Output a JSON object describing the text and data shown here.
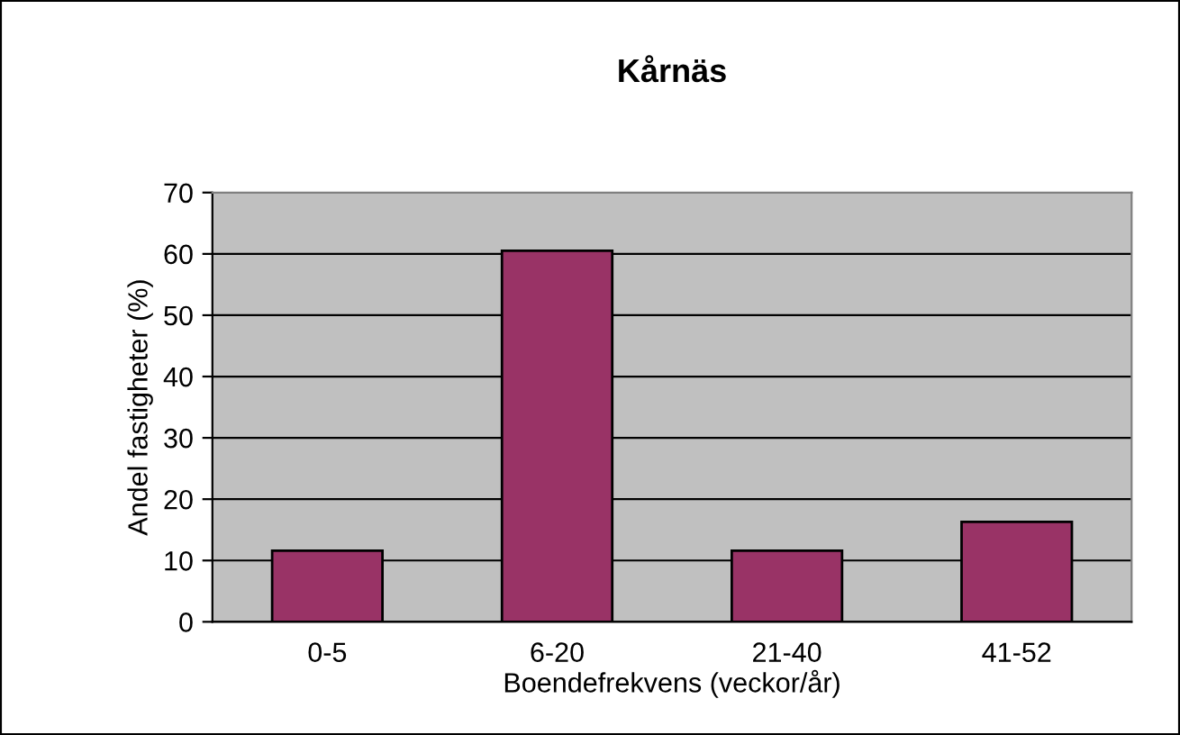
{
  "chart_data": {
    "type": "bar",
    "title": "Kårnäs",
    "xlabel": "Boendefrekvens (veckor/år)",
    "ylabel": "Andel fastigheter (%)",
    "categories": [
      "0-5",
      "6-20",
      "21-40",
      "41-52"
    ],
    "values": [
      11.6,
      60.5,
      11.6,
      16.3
    ],
    "color": "#993366",
    "ylim": [
      0,
      70
    ],
    "yticks": [
      0,
      10,
      20,
      30,
      40,
      50,
      60,
      70
    ],
    "grid": "y"
  }
}
